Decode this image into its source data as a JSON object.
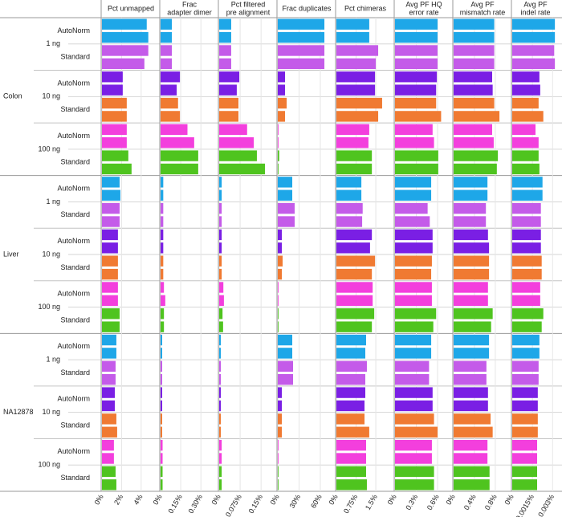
{
  "chart_data": {
    "type": "bar",
    "orientation": "horizontal",
    "tissues": [
      "Colon",
      "Liver",
      "NA12878"
    ],
    "amounts": [
      "1 ng",
      "10 ng",
      "100 ng"
    ],
    "methods": [
      "AutoNorm",
      "Standard"
    ],
    "colors": [
      "#1ea7e8",
      "#c45be9",
      "#7a1fe4",
      "#f07a32",
      "#f33fdd",
      "#4fc41f"
    ],
    "grid": true,
    "panels": [
      {
        "title": [
          "Pct unmapped"
        ],
        "xlim": [
          0,
          5.9
        ],
        "xticks": [
          {
            "value": 0,
            "label": "0%"
          },
          {
            "value": 2,
            "label": "2%"
          },
          {
            "value": 4,
            "label": "4%"
          }
        ],
        "values": [
          4.57,
          4.73,
          4.73,
          4.33,
          2.12,
          2.12,
          2.53,
          2.53,
          2.53,
          2.53,
          2.69,
          3.02,
          1.8,
          1.88,
          1.8,
          1.8,
          1.63,
          1.63,
          1.63,
          1.63,
          1.63,
          1.63,
          1.8,
          1.8,
          1.47,
          1.47,
          1.39,
          1.39,
          1.31,
          1.31,
          1.47,
          1.55,
          1.22,
          1.22,
          1.39,
          1.47
        ]
      },
      {
        "title": [
          "Frac",
          "adapter dimer"
        ],
        "xlim": [
          0,
          0.43
        ],
        "xticks": [
          {
            "value": 0,
            "label": "0%"
          },
          {
            "value": 0.15,
            "label": "0.15%"
          },
          {
            "value": 0.3,
            "label": "0.30%"
          }
        ],
        "values": [
          0.084,
          0.084,
          0.084,
          0.084,
          0.144,
          0.12,
          0.13,
          0.144,
          0.2,
          0.25,
          0.28,
          0.28,
          0.02,
          0.02,
          0.02,
          0.02,
          0.02,
          0.02,
          0.02,
          0.02,
          0.025,
          0.035,
          0.025,
          0.025,
          0.012,
          0.012,
          0.012,
          0.012,
          0.012,
          0.012,
          0.012,
          0.012,
          0.015,
          0.015,
          0.015,
          0.015
        ]
      },
      {
        "title": [
          "Pct filtered",
          "pre alignment"
        ],
        "xlim": [
          0,
          0.207
        ],
        "xticks": [
          {
            "value": 0,
            "label": "0%"
          },
          {
            "value": 0.075,
            "label": "0.075%"
          },
          {
            "value": 0.15,
            "label": "0.15%"
          }
        ],
        "values": [
          0.043,
          0.043,
          0.043,
          0.043,
          0.072,
          0.063,
          0.069,
          0.069,
          0.1,
          0.124,
          0.135,
          0.164,
          0.009,
          0.009,
          0.009,
          0.009,
          0.009,
          0.009,
          0.009,
          0.009,
          0.015,
          0.017,
          0.012,
          0.014,
          0.006,
          0.006,
          0.006,
          0.006,
          0.006,
          0.006,
          0.006,
          0.006,
          0.009,
          0.009,
          0.009,
          0.009
        ]
      },
      {
        "title": [
          "Frac duplicates"
        ],
        "xlim": [
          0,
          81.5
        ],
        "xticks": [
          {
            "value": 0,
            "label": "0%"
          },
          {
            "value": 30,
            "label": "30%"
          },
          {
            "value": 60,
            "label": "60%"
          }
        ],
        "values": [
          65.7,
          65.7,
          65.7,
          65.7,
          10.2,
          10.2,
          12.5,
          10.2,
          1,
          1,
          2,
          1,
          20.4,
          20.4,
          23.8,
          23.8,
          5.7,
          5.7,
          6.8,
          5.7,
          1,
          1,
          1,
          1,
          20.4,
          20.4,
          21.5,
          21.5,
          5.7,
          5.7,
          5.7,
          5.7,
          1,
          1,
          1,
          1
        ]
      },
      {
        "title": [
          "Pct chimeras"
        ],
        "xlim": [
          0,
          2.2
        ],
        "xticks": [
          {
            "value": 0,
            "label": "0%"
          },
          {
            "value": 0.75,
            "label": "0.75%"
          },
          {
            "value": 1.5,
            "label": "1.5%"
          }
        ],
        "values": [
          1.25,
          1.25,
          1.59,
          1.5,
          1.47,
          1.47,
          1.74,
          1.59,
          1.25,
          1.22,
          1.35,
          1.35,
          0.95,
          0.95,
          1.0,
          0.98,
          1.35,
          1.28,
          1.47,
          1.35,
          1.38,
          1.38,
          1.44,
          1.35,
          1.13,
          1.1,
          1.16,
          1.1,
          1.1,
          1.07,
          1.07,
          1.25,
          1.13,
          1.13,
          1.13,
          1.16
        ]
      },
      {
        "title": [
          "Avg PF HQ",
          "error rate"
        ],
        "xlim": [
          0,
          0.815
        ],
        "xticks": [
          {
            "value": 0,
            "label": "0%"
          },
          {
            "value": 0.3,
            "label": "0.3%"
          },
          {
            "value": 0.6,
            "label": "0.6%"
          }
        ],
        "values": [
          0.6,
          0.6,
          0.6,
          0.6,
          0.59,
          0.58,
          0.58,
          0.65,
          0.53,
          0.55,
          0.61,
          0.61,
          0.51,
          0.51,
          0.46,
          0.49,
          0.53,
          0.53,
          0.52,
          0.51,
          0.52,
          0.52,
          0.58,
          0.54,
          0.51,
          0.51,
          0.48,
          0.48,
          0.53,
          0.53,
          0.55,
          0.6,
          0.52,
          0.52,
          0.55,
          0.55
        ]
      },
      {
        "title": [
          "Avg PF",
          "mismatch rate"
        ],
        "xlim": [
          0,
          1.11
        ],
        "xticks": [
          {
            "value": 0,
            "label": "0%"
          },
          {
            "value": 0.4,
            "label": "0.4%"
          },
          {
            "value": 0.8,
            "label": "0.8%"
          }
        ],
        "values": [
          0.78,
          0.78,
          0.78,
          0.78,
          0.74,
          0.75,
          0.78,
          0.88,
          0.74,
          0.77,
          0.85,
          0.83,
          0.65,
          0.65,
          0.62,
          0.62,
          0.66,
          0.68,
          0.68,
          0.68,
          0.66,
          0.66,
          0.75,
          0.72,
          0.68,
          0.68,
          0.63,
          0.63,
          0.66,
          0.66,
          0.71,
          0.75,
          0.65,
          0.65,
          0.69,
          0.69
        ]
      },
      {
        "title": [
          "Avg PF",
          "indel rate"
        ],
        "xlim": [
          0,
          0.00346
        ],
        "xticks": [
          {
            "value": 0,
            "label": "0%"
          },
          {
            "value": 0.0015,
            "label": "0.0015%"
          },
          {
            "value": 0.003,
            "label": "0.003%"
          }
        ],
        "values": [
          0.00317,
          0.00317,
          0.00312,
          0.00317,
          0.00202,
          0.00208,
          0.00196,
          0.00231,
          0.00173,
          0.00196,
          0.00196,
          0.00202,
          0.00225,
          0.00225,
          0.00213,
          0.00213,
          0.00213,
          0.00213,
          0.00219,
          0.00219,
          0.00208,
          0.00208,
          0.00231,
          0.00219,
          0.00202,
          0.00202,
          0.00196,
          0.00196,
          0.0019,
          0.0019,
          0.0019,
          0.0019,
          0.00185,
          0.00185,
          0.00185,
          0.00185
        ]
      }
    ]
  }
}
